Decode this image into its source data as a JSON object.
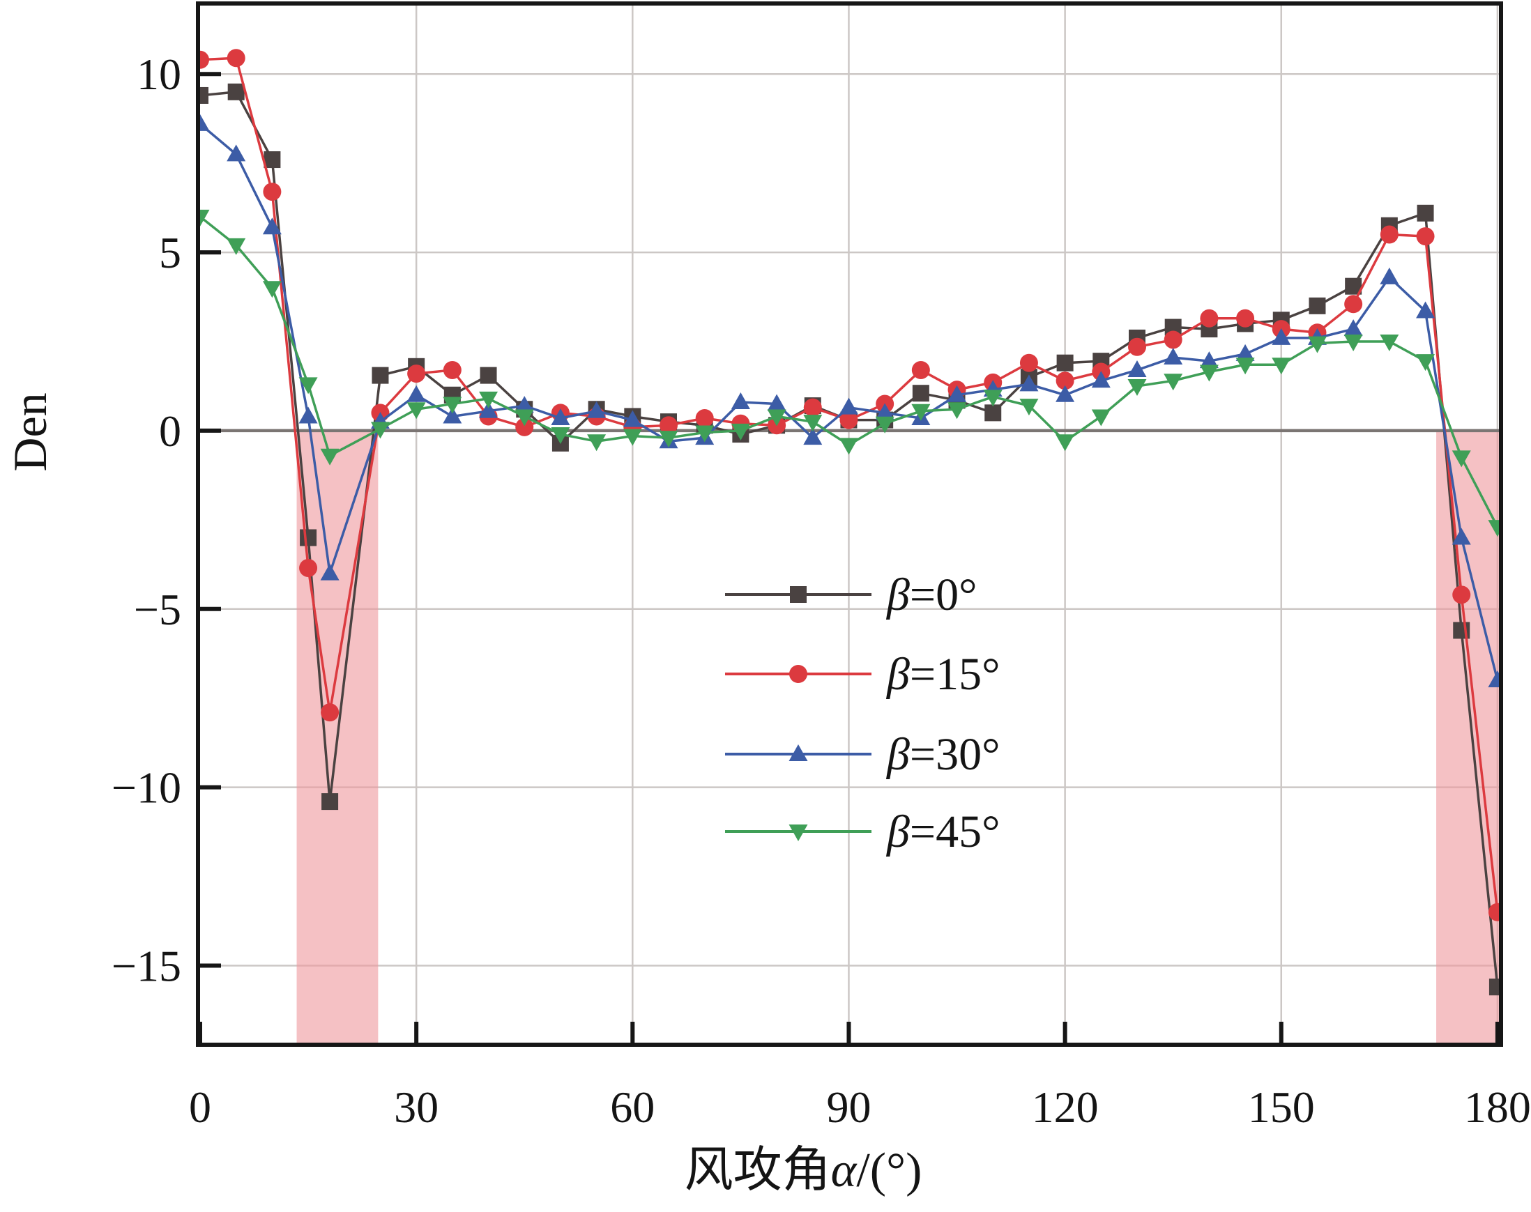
{
  "chart_data": {
    "type": "line",
    "title": "",
    "xlabel": "风攻角α/(°)",
    "ylabel": "Den",
    "xlim": [
      0,
      180.2
    ],
    "ylim": [
      -17.16,
      11.92
    ],
    "grid": true,
    "grid_color": "#ccc7c5",
    "zero_line_color": "#7b7573",
    "axis_color": "#161616",
    "x_ticks": [
      0,
      30,
      60,
      90,
      120,
      150,
      180
    ],
    "x_tick_labels": [
      "0",
      "30",
      "60",
      "90",
      "120",
      "150",
      "180"
    ],
    "y_ticks": [
      -15,
      -10,
      -5,
      0,
      5,
      10
    ],
    "y_tick_labels": [
      "−15",
      "−10",
      "−5",
      "0",
      "5",
      "10"
    ],
    "highlight_bands": [
      {
        "x_start": 13.4,
        "x_end": 24.7,
        "y_from": 0,
        "y_to": -17.16,
        "color": "rgba(239,152,156,0.6)",
        "name": "excluded-region-left"
      },
      {
        "x_start": 171.5,
        "x_end": 180.2,
        "y_from": 0,
        "y_to": -17.16,
        "color": "rgba(239,152,156,0.6)",
        "name": "excluded-region-right"
      }
    ],
    "legend_position": "center",
    "x": [
      0,
      5,
      10,
      15,
      18,
      25,
      30,
      35,
      40,
      45,
      50,
      55,
      60,
      65,
      70,
      75,
      80,
      85,
      90,
      95,
      100,
      105,
      110,
      115,
      120,
      125,
      130,
      135,
      140,
      145,
      150,
      155,
      160,
      165,
      170,
      175,
      180
    ],
    "series": [
      {
        "name": "β=0°",
        "marker": "square",
        "color": "#4a4241",
        "values": [
          9.4,
          9.5,
          7.6,
          -3.0,
          -10.4,
          1.55,
          1.8,
          1.0,
          1.55,
          0.6,
          -0.35,
          0.6,
          0.4,
          0.25,
          0.15,
          -0.1,
          0.15,
          0.7,
          0.3,
          0.3,
          1.05,
          0.85,
          0.5,
          1.5,
          1.9,
          1.95,
          2.6,
          2.9,
          2.85,
          3.0,
          3.1,
          3.5,
          4.05,
          5.75,
          6.1,
          -5.6,
          -15.6
        ]
      },
      {
        "name": "β=15°",
        "marker": "circle",
        "color": "#dc3a3f",
        "values": [
          10.4,
          10.45,
          6.7,
          -3.85,
          -7.9,
          0.5,
          1.6,
          1.7,
          0.4,
          0.1,
          0.5,
          0.4,
          0.1,
          0.15,
          0.35,
          0.2,
          0.15,
          0.65,
          0.3,
          0.75,
          1.7,
          1.15,
          1.35,
          1.9,
          1.4,
          1.65,
          2.35,
          2.55,
          3.15,
          3.15,
          2.85,
          2.75,
          3.55,
          5.5,
          5.45,
          -4.6,
          -13.5
        ]
      },
      {
        "name": "β=30°",
        "marker": "triangle-up",
        "color": "#3c5ca6",
        "values": [
          8.6,
          7.75,
          5.7,
          0.4,
          -4.0,
          0.25,
          1.0,
          0.4,
          0.55,
          0.7,
          0.35,
          0.55,
          0.3,
          -0.3,
          -0.2,
          0.8,
          0.75,
          -0.2,
          0.65,
          0.5,
          0.35,
          1.0,
          1.15,
          1.3,
          1.0,
          1.4,
          1.7,
          2.05,
          1.95,
          2.15,
          2.6,
          2.6,
          2.85,
          4.3,
          3.35,
          -3.0,
          -7.0
        ]
      },
      {
        "name": "β=45°",
        "marker": "triangle-down",
        "color": "#3f9f57",
        "values": [
          6.0,
          5.2,
          4.0,
          1.3,
          -0.7,
          0.05,
          0.6,
          0.75,
          0.9,
          0.4,
          -0.1,
          -0.3,
          -0.15,
          -0.2,
          -0.05,
          0.0,
          0.4,
          0.25,
          -0.4,
          0.2,
          0.55,
          0.6,
          0.95,
          0.7,
          -0.3,
          0.4,
          1.25,
          1.4,
          1.65,
          1.85,
          1.85,
          2.45,
          2.5,
          2.5,
          1.95,
          -0.75,
          -2.7
        ]
      }
    ]
  }
}
